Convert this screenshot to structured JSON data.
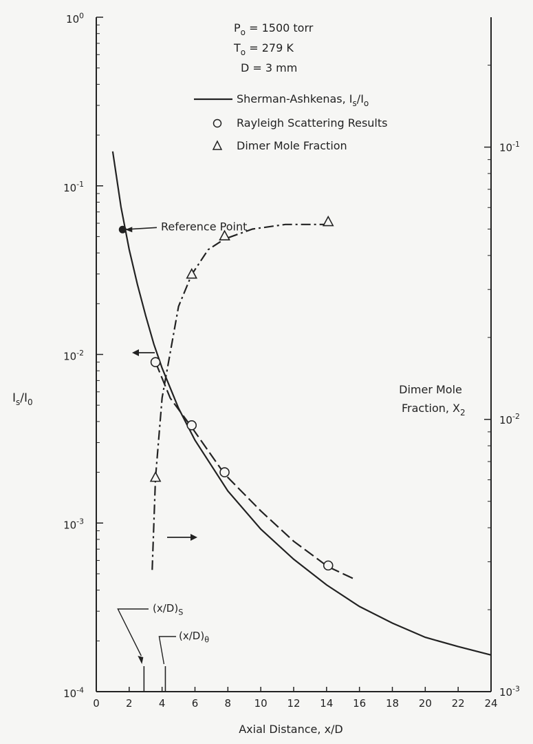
{
  "chart_data": {
    "type": "scatter",
    "xlabel": "Axial Distance, x/D",
    "ylabel_left": "I_s/I_0",
    "ylabel_right": [
      "Dimer Mole",
      "Fraction, X_2"
    ],
    "xlim": [
      0,
      24
    ],
    "xticks": [
      0,
      2,
      4,
      6,
      8,
      10,
      12,
      14,
      16,
      18,
      20,
      22,
      24
    ],
    "ylim_left": [
      0.0001,
      1
    ],
    "ylim_right": [
      0.001,
      0.3
    ],
    "yscale": "log",
    "left_ticks": [
      {
        "base": "10",
        "exp": "-4"
      },
      {
        "base": "10",
        "exp": "-3"
      },
      {
        "base": "10",
        "exp": "-2"
      },
      {
        "base": "10",
        "exp": "-1"
      },
      {
        "base": "10",
        "exp": "0"
      }
    ],
    "right_ticks": [
      {
        "base": "10",
        "exp": "-3"
      },
      {
        "base": "10",
        "exp": "-2"
      },
      {
        "base": "10",
        "exp": "-1"
      }
    ],
    "conditions": [
      {
        "sym": "P",
        "sub": "o",
        "rest": " = 1500 torr"
      },
      {
        "sym": "T",
        "sub": "o",
        "rest": " = 279 K"
      },
      {
        "sym": "D",
        "sub": "",
        "rest": " = 3 mm"
      }
    ],
    "legend": [
      {
        "marker": "line",
        "text": "Sherman-Ashkenas, I_s/I_o"
      },
      {
        "marker": "circle",
        "text": "Rayleigh Scattering Results"
      },
      {
        "marker": "triangle",
        "text": "Dimer Mole Fraction"
      }
    ],
    "series": [
      {
        "name": "Sherman-Ashkenas, Is/Io",
        "style": "solid",
        "x": [
          1.0,
          1.5,
          2.0,
          2.5,
          3.0,
          3.5,
          4.0,
          5.0,
          6.0,
          8.0,
          10.0,
          12.0,
          14.0,
          16.0,
          18.0,
          20.0,
          22.0,
          24.0
        ],
        "y": [
          0.16,
          0.075,
          0.042,
          0.026,
          0.017,
          0.0115,
          0.0083,
          0.0048,
          0.0031,
          0.00155,
          0.00092,
          0.00061,
          0.00043,
          0.00032,
          0.000255,
          0.00021,
          0.000185,
          0.000165
        ]
      },
      {
        "name": "Rayleigh Scattering Results",
        "style": "dashed",
        "x": [
          3.6,
          4.5,
          5.8,
          7.8,
          10.0,
          12.0,
          14.1,
          15.8
        ],
        "y": [
          0.009,
          0.0055,
          0.0037,
          0.00195,
          0.00118,
          0.00078,
          0.00055,
          0.00046
        ]
      },
      {
        "name": "Rayleigh Scattering Results",
        "style": "markers",
        "marker": "circle",
        "x": [
          3.6,
          5.8,
          7.8,
          14.1
        ],
        "y": [
          0.009,
          0.0038,
          0.002,
          0.00056
        ]
      },
      {
        "name": "Dimer Mole Fraction",
        "style": "dashdot",
        "axis": "right",
        "x": [
          3.4,
          3.6,
          4.0,
          5.0,
          5.8,
          6.8,
          7.8,
          9.5,
          11.5,
          14.0
        ],
        "y": [
          0.0028,
          0.0061,
          0.012,
          0.026,
          0.034,
          0.042,
          0.046,
          0.05,
          0.052,
          0.052
        ]
      },
      {
        "name": "Dimer Mole Fraction",
        "style": "markers",
        "marker": "triangle",
        "axis": "right",
        "x": [
          3.6,
          5.8,
          7.8,
          14.1
        ],
        "y": [
          0.0061,
          0.034,
          0.047,
          0.053
        ]
      }
    ],
    "annotations": {
      "reference_point": {
        "label": "Reference Point",
        "x": 1.6,
        "y": 0.055
      },
      "xd_s": {
        "label": "(x/D)",
        "sub": "S",
        "x": 2.9
      },
      "xd_theta": {
        "label": "(x/D)",
        "sub": "θ",
        "x": 4.2
      }
    }
  }
}
